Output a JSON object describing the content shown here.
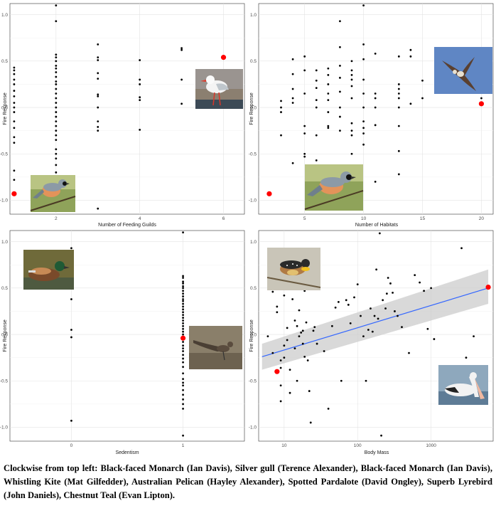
{
  "chart_data": [
    {
      "type": "scatter",
      "xlabel": "Number of Feeding Guilds",
      "ylabel": "Fire Response",
      "xlim": [
        0.9,
        6.5
      ],
      "ylim": [
        -1.15,
        1.12
      ],
      "x_ticks": [
        2,
        4,
        6
      ],
      "y_ticks": [
        -1.0,
        -0.5,
        0.0,
        0.5,
        1.0
      ],
      "grid": true,
      "points": [
        [
          1,
          0.43
        ],
        [
          1,
          0.4
        ],
        [
          1,
          0.36
        ],
        [
          1,
          0.3
        ],
        [
          1,
          0.25
        ],
        [
          1,
          0.18
        ],
        [
          1,
          0.12
        ],
        [
          1,
          0.05
        ],
        [
          1,
          0.0
        ],
        [
          1,
          -0.05
        ],
        [
          1,
          -0.15
        ],
        [
          1,
          -0.22
        ],
        [
          1,
          -0.32
        ],
        [
          1,
          -0.38
        ],
        [
          1,
          -0.68
        ],
        [
          1,
          -0.78
        ],
        [
          2,
          1.1
        ],
        [
          2,
          0.93
        ],
        [
          2,
          0.57
        ],
        [
          2,
          0.54
        ],
        [
          2,
          0.5
        ],
        [
          2,
          0.45
        ],
        [
          2,
          0.42
        ],
        [
          2,
          0.38
        ],
        [
          2,
          0.33
        ],
        [
          2,
          0.28
        ],
        [
          2,
          0.25
        ],
        [
          2,
          0.2
        ],
        [
          2,
          0.15
        ],
        [
          2,
          0.1
        ],
        [
          2,
          0.05
        ],
        [
          2,
          0.0
        ],
        [
          2,
          -0.05
        ],
        [
          2,
          -0.1
        ],
        [
          2,
          -0.15
        ],
        [
          2,
          -0.2
        ],
        [
          2,
          -0.25
        ],
        [
          2,
          -0.3
        ],
        [
          2,
          -0.35
        ],
        [
          2,
          -0.45
        ],
        [
          2,
          -0.5
        ],
        [
          2,
          -0.55
        ],
        [
          2,
          -0.62
        ],
        [
          2,
          -0.7
        ],
        [
          3,
          0.68
        ],
        [
          3,
          0.54
        ],
        [
          3,
          0.51
        ],
        [
          3,
          0.37
        ],
        [
          3,
          0.31
        ],
        [
          3,
          0.14
        ],
        [
          3,
          0.12
        ],
        [
          3,
          0.0
        ],
        [
          3,
          -0.15
        ],
        [
          3,
          -0.21
        ],
        [
          3,
          -0.25
        ],
        [
          3,
          -1.09
        ],
        [
          4,
          0.51
        ],
        [
          4,
          0.3
        ],
        [
          4,
          0.25
        ],
        [
          4,
          0.11
        ],
        [
          4,
          0.08
        ],
        [
          4,
          -0.24
        ],
        [
          5,
          0.64
        ],
        [
          5,
          0.62
        ],
        [
          5,
          0.3
        ],
        [
          5,
          0.04
        ]
      ],
      "highlighted": [
        [
          1,
          -0.93
        ],
        [
          6,
          0.54
        ]
      ]
    },
    {
      "type": "scatter",
      "xlabel": "Number of Habitats",
      "ylabel": "Fire Response",
      "xlim": [
        1.1,
        21.0
      ],
      "ylim": [
        -1.15,
        1.12
      ],
      "x_ticks": [
        5,
        10,
        15,
        20
      ],
      "y_ticks": [
        -1.0,
        -0.5,
        0.0,
        0.5,
        1.0
      ],
      "grid": true,
      "points": [
        [
          3,
          0.07
        ],
        [
          3,
          0.0
        ],
        [
          3,
          -0.05
        ],
        [
          3,
          -0.3
        ],
        [
          4,
          0.52
        ],
        [
          4,
          0.36
        ],
        [
          4,
          0.2
        ],
        [
          4,
          0.1
        ],
        [
          4,
          0.05
        ],
        [
          4,
          -0.6
        ],
        [
          5,
          0.55
        ],
        [
          5,
          0.4
        ],
        [
          5,
          0.15
        ],
        [
          5,
          -0.2
        ],
        [
          5,
          -0.28
        ],
        [
          5,
          -0.5
        ],
        [
          5,
          -0.53
        ],
        [
          6,
          0.4
        ],
        [
          6,
          0.29
        ],
        [
          6,
          0.21
        ],
        [
          6,
          0.08
        ],
        [
          6,
          0.0
        ],
        [
          6,
          -0.3
        ],
        [
          6,
          -0.57
        ],
        [
          7,
          0.42
        ],
        [
          7,
          0.35
        ],
        [
          7,
          0.25
        ],
        [
          7,
          0.15
        ],
        [
          7,
          0.08
        ],
        [
          7,
          -0.05
        ],
        [
          7,
          -0.2
        ],
        [
          7,
          -0.22
        ],
        [
          8,
          0.93
        ],
        [
          8,
          0.65
        ],
        [
          8,
          0.45
        ],
        [
          8,
          0.32
        ],
        [
          8,
          0.17
        ],
        [
          8,
          0.0
        ],
        [
          8,
          -0.1
        ],
        [
          8,
          -0.25
        ],
        [
          9,
          0.5
        ],
        [
          9,
          0.4
        ],
        [
          9,
          0.35
        ],
        [
          9,
          0.3
        ],
        [
          9,
          0.23
        ],
        [
          9,
          0.1
        ],
        [
          9,
          -0.17
        ],
        [
          9,
          -0.25
        ],
        [
          9,
          -0.3
        ],
        [
          9,
          -0.5
        ],
        [
          10,
          1.1
        ],
        [
          10,
          0.68
        ],
        [
          10,
          0.52
        ],
        [
          10,
          0.3
        ],
        [
          10,
          0.15
        ],
        [
          10,
          0.0
        ],
        [
          10,
          -0.15
        ],
        [
          10,
          -0.22
        ],
        [
          10,
          -0.28
        ],
        [
          10,
          -0.4
        ],
        [
          11,
          0.58
        ],
        [
          11,
          0.15
        ],
        [
          11,
          0.1
        ],
        [
          11,
          0.0
        ],
        [
          11,
          -0.19
        ],
        [
          11,
          -0.8
        ],
        [
          13,
          0.55
        ],
        [
          13,
          0.25
        ],
        [
          13,
          0.2
        ],
        [
          13,
          0.15
        ],
        [
          13,
          0.1
        ],
        [
          13,
          0.0
        ],
        [
          13,
          -0.2
        ],
        [
          13,
          -0.47
        ],
        [
          13,
          -0.72
        ],
        [
          14,
          0.62
        ],
        [
          14,
          0.55
        ],
        [
          14,
          0.04
        ],
        [
          15,
          0.29
        ],
        [
          15,
          0.1
        ],
        [
          20,
          0.1
        ]
      ],
      "highlighted": [
        [
          2,
          -0.93
        ],
        [
          20,
          0.04
        ]
      ]
    },
    {
      "type": "scatter",
      "xlabel": "Sedentism",
      "ylabel": "Fire Response",
      "xlim": [
        -0.55,
        1.55
      ],
      "ylim": [
        -1.15,
        1.12
      ],
      "x_ticks": [
        0,
        1
      ],
      "y_ticks": [
        -1.0,
        -0.5,
        0.0,
        0.5,
        1.0
      ],
      "grid": true,
      "points": [
        [
          0,
          0.93
        ],
        [
          0,
          0.52
        ],
        [
          0,
          0.5
        ],
        [
          0,
          0.38
        ],
        [
          0,
          0.05
        ],
        [
          0,
          -0.03
        ],
        [
          0,
          -0.93
        ],
        [
          1,
          1.1
        ],
        [
          1,
          0.63
        ],
        [
          1,
          0.61
        ],
        [
          1,
          0.57
        ],
        [
          1,
          0.55
        ],
        [
          1,
          0.52
        ],
        [
          1,
          0.5
        ],
        [
          1,
          0.47
        ],
        [
          1,
          0.44
        ],
        [
          1,
          0.41
        ],
        [
          1,
          0.38
        ],
        [
          1,
          0.36
        ],
        [
          1,
          0.33
        ],
        [
          1,
          0.3
        ],
        [
          1,
          0.27
        ],
        [
          1,
          0.24
        ],
        [
          1,
          0.21
        ],
        [
          1,
          0.18
        ],
        [
          1,
          0.15
        ],
        [
          1,
          0.12
        ],
        [
          1,
          0.09
        ],
        [
          1,
          0.06
        ],
        [
          1,
          0.03
        ],
        [
          1,
          0.0
        ],
        [
          1,
          -0.08
        ],
        [
          1,
          -0.12
        ],
        [
          1,
          -0.15
        ],
        [
          1,
          -0.18
        ],
        [
          1,
          -0.22
        ],
        [
          1,
          -0.26
        ],
        [
          1,
          -0.3
        ],
        [
          1,
          -0.35
        ],
        [
          1,
          -0.42
        ],
        [
          1,
          -0.48
        ],
        [
          1,
          -0.52
        ],
        [
          1,
          -0.55
        ],
        [
          1,
          -0.6
        ],
        [
          1,
          -0.65
        ],
        [
          1,
          -0.7
        ],
        [
          1,
          -0.75
        ],
        [
          1,
          -0.8
        ],
        [
          1,
          -1.09
        ]
      ],
      "highlighted": [
        [
          0,
          0.69
        ],
        [
          1,
          -0.04
        ]
      ]
    },
    {
      "type": "scatter",
      "xlabel": "Body Mass",
      "ylabel": "Fire Response",
      "x_scale": "log10",
      "xlim": [
        4.5,
        7000
      ],
      "ylim": [
        -1.15,
        1.12
      ],
      "x_ticks": [
        10,
        100,
        1000
      ],
      "y_ticks": [
        -1.0,
        -0.5,
        0.0,
        0.5,
        1.0
      ],
      "grid": true,
      "points": [
        [
          6,
          -0.02
        ],
        [
          7,
          0.46
        ],
        [
          7,
          -0.2
        ],
        [
          8,
          0.3
        ],
        [
          8,
          0.24
        ],
        [
          9,
          -0.55
        ],
        [
          9,
          -0.28
        ],
        [
          9,
          -0.36
        ],
        [
          9,
          -0.72
        ],
        [
          10,
          0.42
        ],
        [
          10,
          -0.12
        ],
        [
          10,
          -0.25
        ],
        [
          11,
          0.07
        ],
        [
          11,
          -0.06
        ],
        [
          12,
          -0.63
        ],
        [
          12,
          -0.38
        ],
        [
          13,
          0.38
        ],
        [
          14,
          0.15
        ],
        [
          14,
          -0.15
        ],
        [
          15,
          0.09
        ],
        [
          15,
          -0.5
        ],
        [
          16,
          0.26
        ],
        [
          16,
          -0.02
        ],
        [
          17,
          0.02
        ],
        [
          18,
          0.04
        ],
        [
          18,
          -0.1
        ],
        [
          19,
          0.47
        ],
        [
          19,
          -0.24
        ],
        [
          20,
          0.13
        ],
        [
          21,
          -0.28
        ],
        [
          22,
          -0.61
        ],
        [
          23,
          -0.95
        ],
        [
          25,
          0.04
        ],
        [
          26,
          0.08
        ],
        [
          28,
          -0.1
        ],
        [
          30,
          0.53
        ],
        [
          35,
          -0.18
        ],
        [
          40,
          -0.8
        ],
        [
          45,
          0.09
        ],
        [
          50,
          0.29
        ],
        [
          55,
          0.35
        ],
        [
          60,
          -0.5
        ],
        [
          70,
          0.37
        ],
        [
          75,
          0.32
        ],
        [
          80,
          0.12
        ],
        [
          90,
          0.4
        ],
        [
          100,
          0.54
        ],
        [
          110,
          0.2
        ],
        [
          120,
          -0.02
        ],
        [
          130,
          -0.5
        ],
        [
          140,
          0.05
        ],
        [
          150,
          0.28
        ],
        [
          160,
          0.03
        ],
        [
          170,
          0.2
        ],
        [
          180,
          0.7
        ],
        [
          190,
          0.17
        ],
        [
          200,
          1.09
        ],
        [
          210,
          -1.09
        ],
        [
          220,
          0.37
        ],
        [
          240,
          0.28
        ],
        [
          250,
          0.44
        ],
        [
          260,
          0.61
        ],
        [
          280,
          0.55
        ],
        [
          300,
          0.45
        ],
        [
          320,
          0.25
        ],
        [
          350,
          0.2
        ],
        [
          400,
          0.08
        ],
        [
          500,
          -0.2
        ],
        [
          600,
          0.64
        ],
        [
          700,
          0.56
        ],
        [
          800,
          0.47
        ],
        [
          900,
          0.06
        ],
        [
          1000,
          0.5
        ],
        [
          1100,
          -0.05
        ],
        [
          2600,
          0.93
        ],
        [
          3000,
          -0.25
        ],
        [
          3800,
          -0.02
        ]
      ],
      "highlighted": [
        [
          8,
          -0.4
        ],
        [
          6000,
          0.51
        ]
      ],
      "trend": {
        "x0": 5,
        "y0": -0.24,
        "x1": 6000,
        "y1": 0.5,
        "ci_lo0": -0.38,
        "ci_hi0": -0.1,
        "ci_lo1": 0.33,
        "ci_hi1": 0.7,
        "line_color": "#3366ff",
        "ci_color": "#cccccc"
      }
    }
  ],
  "photos": [
    {
      "name": "black-faced-monarch-photo"
    },
    {
      "name": "silver-gull-photo"
    },
    {
      "name": "whistling-kite-photo"
    },
    {
      "name": "black-faced-monarch-photo-2"
    },
    {
      "name": "chestnut-teal-photo"
    },
    {
      "name": "superb-lyrebird-photo"
    },
    {
      "name": "spotted-pardalote-photo"
    },
    {
      "name": "australian-pelican-photo"
    }
  ],
  "caption": "Clockwise from top left: Black-faced Monarch (Ian Davis), Silver gull (Terence Alexander), Black-faced Monarch (Ian Davis), Whistling Kite (Mat Gilfedder), Australian Pelican (Hayley Alexander), Spotted Pardalote (David Ongley), Superb Lyrebird (John Daniels), Chestnut Teal (Evan Lipton).",
  "colors": {
    "points": "#000000",
    "highlight": "#ff0000",
    "grid": "#ebebeb",
    "panel_border": "#333333"
  }
}
